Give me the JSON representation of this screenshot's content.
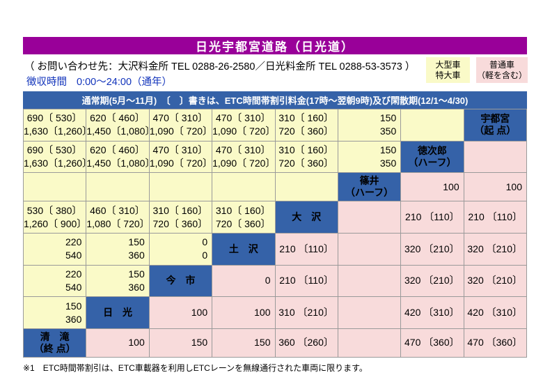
{
  "title": "日光宇都宮道路（日光道）",
  "contact": {
    "line1": "（ お問い合わせ先：大沢料金所 TEL 0288-26-2580／日光料金所 TEL 0288-53-3573 ）",
    "hours_label": "徴収時間",
    "hours_value": "0:00～24:00（通年）"
  },
  "legend": {
    "large": {
      "line1": "大型車",
      "line2": "特大車"
    },
    "standard": {
      "line1": "普通車",
      "line2": "（軽を含む）"
    }
  },
  "table_header": "通常期(5月～11月)　〔　〕書きは、ETC時間帯割引料金(17時～翌朝9時)及び閑散期(12/1～4/30)",
  "footnote": "※1　ETC時間帯割引は、ETC車載器を利用しETCレーンを無線通行された車両に限ります。",
  "colors": {
    "title_purple": "#990099",
    "header_blue": "#3562a8",
    "large_vehicle_yellow": "#fafac8",
    "standard_vehicle_pink": "#f8dbdb",
    "hours_text_blue": "#1133bb"
  },
  "fare_table": {
    "stations": [
      "宇都宮（起点）",
      "徳次郎（ハーフ）",
      "篠井（ハーフ）",
      "大沢",
      "土沢",
      "今市",
      "日光",
      "清滝（終点）"
    ],
    "rows": [
      {
        "cells": [
          {
            "t": "fare",
            "bg": "y",
            "lines": [
              "690〔 530〕",
              "1,630〔1,260〕"
            ]
          },
          {
            "t": "fare",
            "bg": "y",
            "lines": [
              "620〔 460〕",
              "1,450〔1,080〕"
            ]
          },
          {
            "t": "fare",
            "bg": "y",
            "lines": [
              "470〔 310〕",
              "1,090〔 720〕"
            ]
          },
          {
            "t": "fare",
            "bg": "y",
            "lines": [
              "470〔 310〕",
              "1,090〔 720〕"
            ]
          },
          {
            "t": "fare",
            "bg": "y",
            "lines": [
              "310〔 160〕",
              "720〔 360〕"
            ]
          },
          {
            "t": "fare",
            "bg": "y",
            "lines": [
              "150",
              "350"
            ]
          },
          {
            "t": "empty",
            "bg": "y",
            "lines": []
          },
          {
            "t": "station",
            "bg": "b",
            "lines": [
              "宇都宮",
              "（起 点）"
            ]
          }
        ]
      },
      {
        "cells": [
          {
            "t": "fare",
            "bg": "y",
            "lines": [
              "690〔 530〕",
              "1,630〔1,260〕"
            ]
          },
          {
            "t": "fare",
            "bg": "y",
            "lines": [
              "620〔 460〕",
              "1,450〔1,080〕"
            ]
          },
          {
            "t": "fare",
            "bg": "y",
            "lines": [
              "470〔 310〕",
              "1,090〔 720〕"
            ]
          },
          {
            "t": "fare",
            "bg": "y",
            "lines": [
              "470〔 310〕",
              "1,090〔 720〕"
            ]
          },
          {
            "t": "fare",
            "bg": "y",
            "lines": [
              "310〔 160〕",
              "720〔 360〕"
            ]
          },
          {
            "t": "fare",
            "bg": "y",
            "lines": [
              "150",
              "350"
            ]
          },
          {
            "t": "station",
            "bg": "b",
            "lines": [
              "徳次郎",
              "（ハーフ）"
            ]
          },
          {
            "t": "empty",
            "bg": "p",
            "lines": []
          }
        ]
      },
      {
        "cells": [
          {
            "t": "empty",
            "bg": "y",
            "lines": []
          },
          {
            "t": "empty",
            "bg": "y",
            "lines": []
          },
          {
            "t": "empty",
            "bg": "y",
            "lines": []
          },
          {
            "t": "empty",
            "bg": "y",
            "lines": []
          },
          {
            "t": "empty",
            "bg": "y",
            "lines": []
          },
          {
            "t": "station",
            "bg": "b",
            "lines": [
              "篠井",
              "（ハーフ）"
            ]
          },
          {
            "t": "fare",
            "bg": "p",
            "lines": [
              "100"
            ]
          },
          {
            "t": "fare",
            "bg": "p",
            "lines": [
              "100"
            ]
          }
        ]
      },
      {
        "cells": [
          {
            "t": "fare",
            "bg": "y",
            "lines": [
              "530〔 380〕",
              "1,260〔 900〕"
            ]
          },
          {
            "t": "fare",
            "bg": "y",
            "lines": [
              "460〔 310〕",
              "1,080〔 720〕"
            ]
          },
          {
            "t": "fare",
            "bg": "y",
            "lines": [
              "310〔 160〕",
              "720〔 360〕"
            ]
          },
          {
            "t": "fare",
            "bg": "y",
            "lines": [
              "310〔 160〕",
              "720〔 360〕"
            ]
          },
          {
            "t": "station",
            "bg": "b",
            "lines": [
              "大　沢"
            ]
          },
          {
            "t": "empty",
            "bg": "p",
            "lines": []
          },
          {
            "t": "fare",
            "bg": "p",
            "lines": [
              "210 〔110〕"
            ]
          },
          {
            "t": "fare",
            "bg": "p",
            "lines": [
              "210 〔110〕"
            ]
          }
        ]
      },
      {
        "cells": [
          {
            "t": "fare",
            "bg": "y",
            "lines": [
              "220",
              "540"
            ]
          },
          {
            "t": "fare",
            "bg": "y",
            "lines": [
              "150",
              "360"
            ]
          },
          {
            "t": "fare",
            "bg": "y",
            "lines": [
              "0",
              "0"
            ]
          },
          {
            "t": "station",
            "bg": "b",
            "lines": [
              "土　沢"
            ]
          },
          {
            "t": "fare",
            "bg": "p",
            "lines": [
              "210 〔110〕"
            ]
          },
          {
            "t": "empty",
            "bg": "p",
            "lines": []
          },
          {
            "t": "fare",
            "bg": "p",
            "lines": [
              "320 〔210〕"
            ]
          },
          {
            "t": "fare",
            "bg": "p",
            "lines": [
              "320 〔210〕"
            ]
          }
        ]
      },
      {
        "cells": [
          {
            "t": "fare",
            "bg": "y",
            "lines": [
              "220",
              "540"
            ]
          },
          {
            "t": "fare",
            "bg": "y",
            "lines": [
              "150",
              "360"
            ]
          },
          {
            "t": "station",
            "bg": "b",
            "lines": [
              "今　市"
            ]
          },
          {
            "t": "fare",
            "bg": "p",
            "lines": [
              "0"
            ]
          },
          {
            "t": "fare",
            "bg": "p",
            "lines": [
              "210 〔110〕"
            ]
          },
          {
            "t": "empty",
            "bg": "p",
            "lines": []
          },
          {
            "t": "fare",
            "bg": "p",
            "lines": [
              "320 〔210〕"
            ]
          },
          {
            "t": "fare",
            "bg": "p",
            "lines": [
              "320 〔210〕"
            ]
          }
        ]
      },
      {
        "cells": [
          {
            "t": "fare",
            "bg": "y",
            "lines": [
              "150",
              "360"
            ]
          },
          {
            "t": "station",
            "bg": "b",
            "lines": [
              "日　光"
            ]
          },
          {
            "t": "fare",
            "bg": "p",
            "lines": [
              "100"
            ]
          },
          {
            "t": "fare",
            "bg": "p",
            "lines": [
              "100"
            ]
          },
          {
            "t": "fare",
            "bg": "p",
            "lines": [
              "310 〔210〕"
            ]
          },
          {
            "t": "empty",
            "bg": "p",
            "lines": []
          },
          {
            "t": "fare",
            "bg": "p",
            "lines": [
              "420 〔310〕"
            ]
          },
          {
            "t": "fare",
            "bg": "p",
            "lines": [
              "420 〔310〕"
            ]
          }
        ]
      },
      {
        "cells": [
          {
            "t": "station",
            "bg": "b",
            "lines": [
              "清　滝",
              "（終 点）"
            ]
          },
          {
            "t": "fare",
            "bg": "p",
            "lines": [
              "100"
            ]
          },
          {
            "t": "fare",
            "bg": "p",
            "lines": [
              "150"
            ]
          },
          {
            "t": "fare",
            "bg": "p",
            "lines": [
              "150"
            ]
          },
          {
            "t": "fare",
            "bg": "p",
            "lines": [
              "360 〔260〕"
            ]
          },
          {
            "t": "empty",
            "bg": "p",
            "lines": []
          },
          {
            "t": "fare",
            "bg": "p",
            "lines": [
              "470 〔360〕"
            ]
          },
          {
            "t": "fare",
            "bg": "p",
            "lines": [
              "470 〔360〕"
            ]
          }
        ]
      }
    ]
  }
}
